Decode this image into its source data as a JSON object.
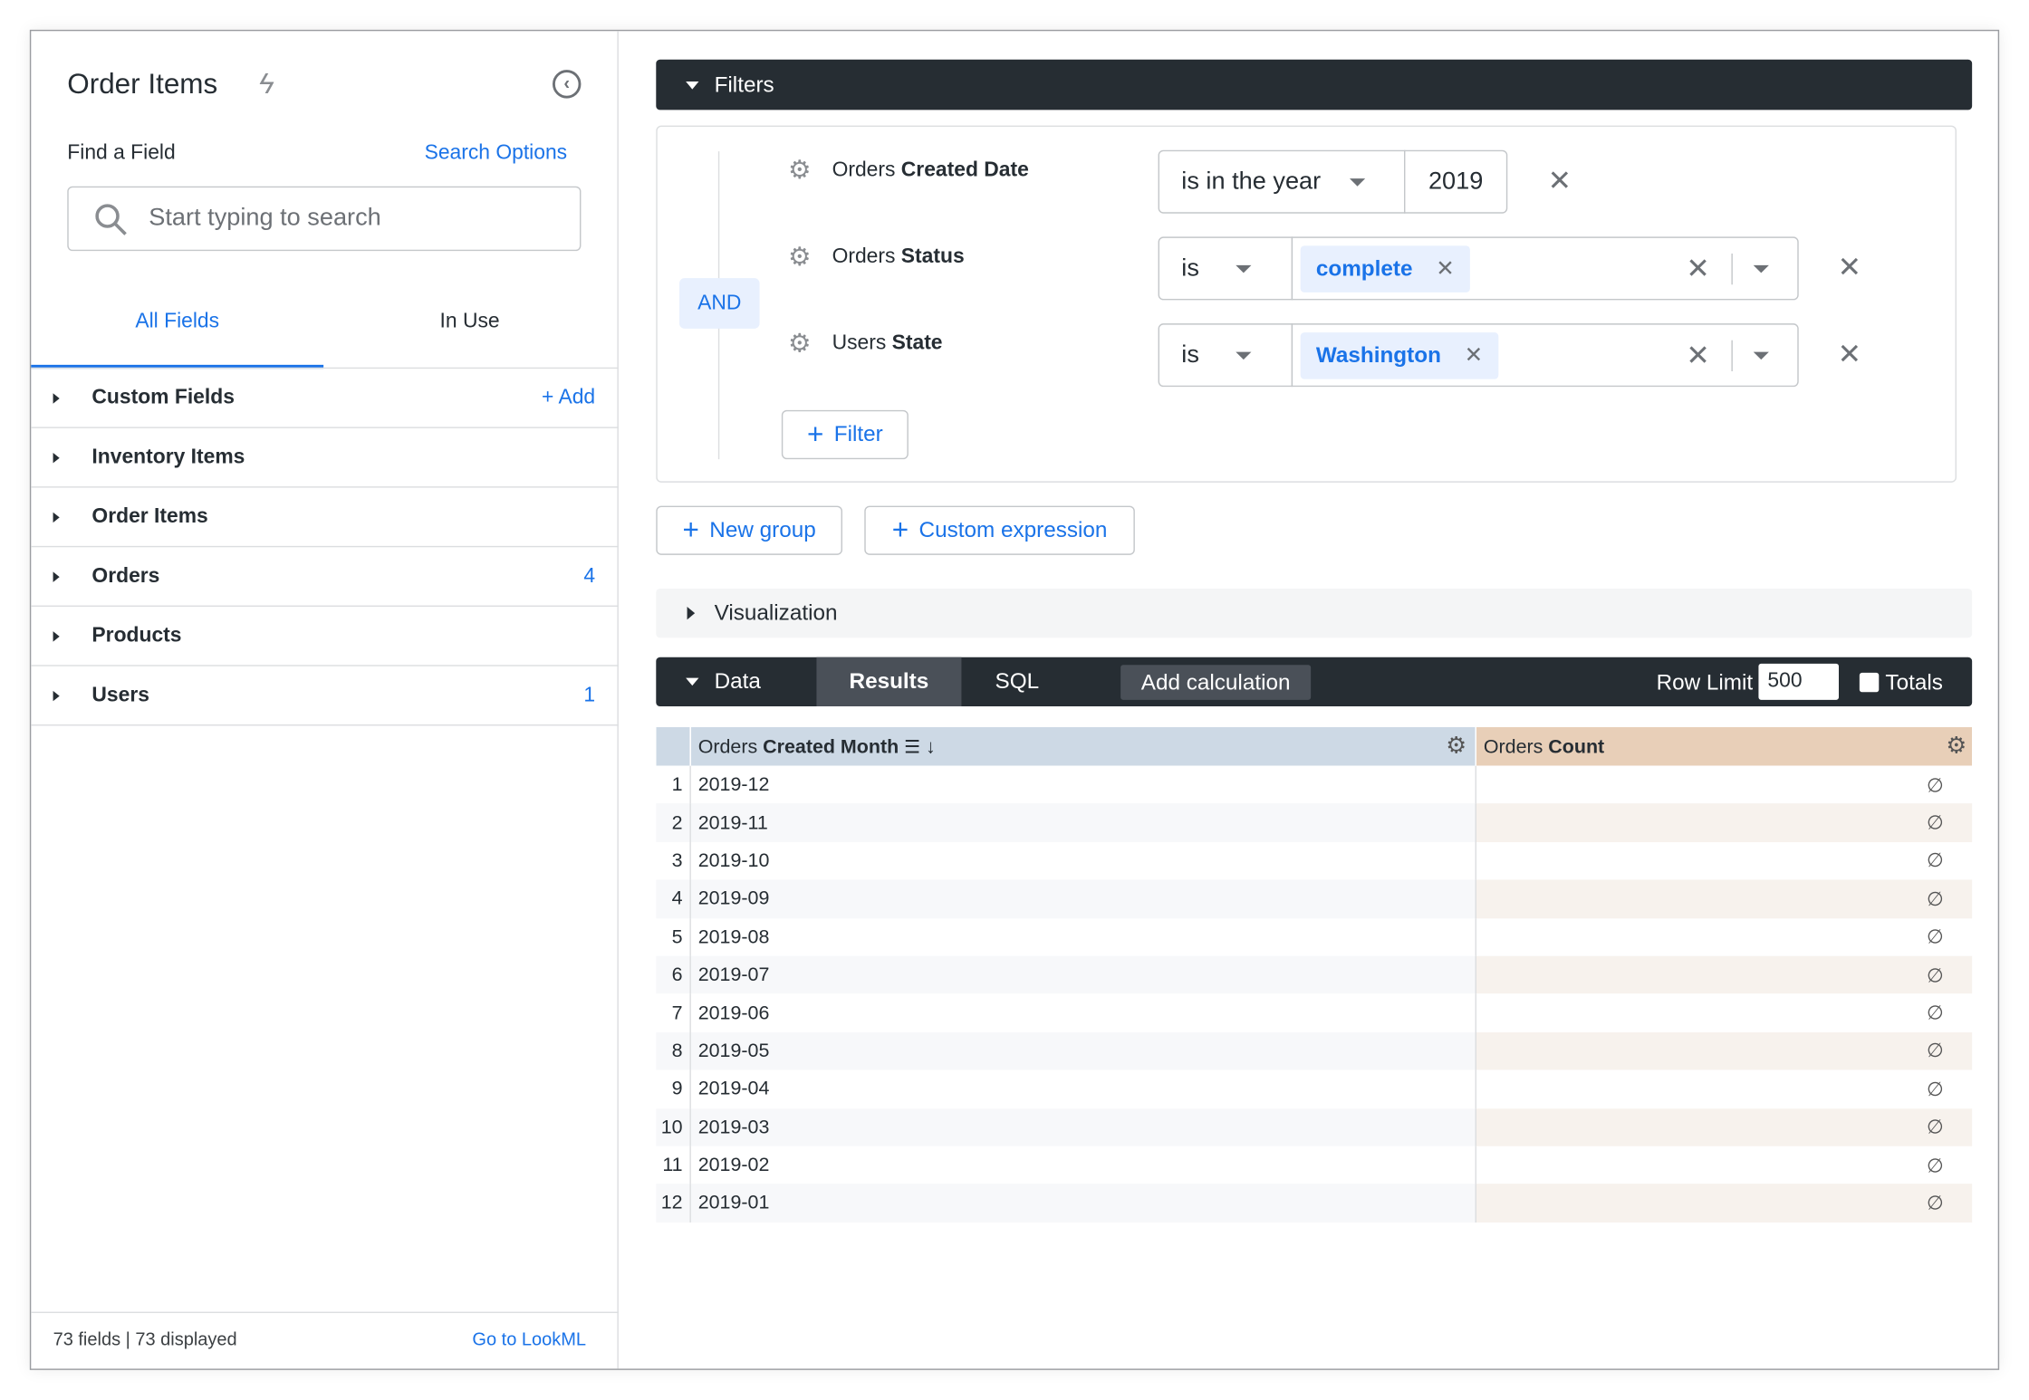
{
  "sidebar": {
    "title": "Order Items",
    "find_label": "Find a Field",
    "search_options": "Search Options",
    "search_placeholder": "Start typing to search",
    "tabs": [
      {
        "label": "All Fields",
        "active": true
      },
      {
        "label": "In Use",
        "active": false
      }
    ],
    "add_label": "Add",
    "items": [
      {
        "label": "Custom Fields",
        "count": ""
      },
      {
        "label": "Inventory Items",
        "count": ""
      },
      {
        "label": "Order Items",
        "count": ""
      },
      {
        "label": "Orders",
        "count": "4"
      },
      {
        "label": "Products",
        "count": ""
      },
      {
        "label": "Users",
        "count": "1"
      }
    ],
    "footer_count": "73 fields | 73 displayed",
    "footer_link": "Go to LookML"
  },
  "filters": {
    "title": "Filters",
    "logic": "AND",
    "rows": [
      {
        "view": "Orders",
        "field": "Created Date",
        "operator": "is in the year",
        "value": "2019"
      },
      {
        "view": "Orders",
        "field": "Status",
        "operator": "is",
        "value": "complete"
      },
      {
        "view": "Users",
        "field": "State",
        "operator": "is",
        "value": "Washington"
      }
    ],
    "add_filter": "Filter",
    "new_group": "New group",
    "custom_expression": "Custom expression"
  },
  "visualization": {
    "title": "Visualization"
  },
  "data_bar": {
    "title": "Data",
    "tabs": [
      "Results",
      "SQL"
    ],
    "active_tab": "Results",
    "add_calculation": "Add calculation",
    "row_limit_label": "Row Limit",
    "row_limit": "500",
    "totals_label": "Totals",
    "totals_checked": false
  },
  "table": {
    "dimension_header": {
      "view": "Orders",
      "field": "Created Month"
    },
    "measure_header": {
      "view": "Orders",
      "field": "Count"
    },
    "colors": {
      "dimension": "#cdd9e5",
      "measure": "#e8cfb8"
    },
    "rows": [
      {
        "index": "1",
        "month": "2019-12",
        "count": "∅"
      },
      {
        "index": "2",
        "month": "2019-11",
        "count": "∅"
      },
      {
        "index": "3",
        "month": "2019-10",
        "count": "∅"
      },
      {
        "index": "4",
        "month": "2019-09",
        "count": "∅"
      },
      {
        "index": "5",
        "month": "2019-08",
        "count": "∅"
      },
      {
        "index": "6",
        "month": "2019-07",
        "count": "∅"
      },
      {
        "index": "7",
        "month": "2019-06",
        "count": "∅"
      },
      {
        "index": "8",
        "month": "2019-05",
        "count": "∅"
      },
      {
        "index": "9",
        "month": "2019-04",
        "count": "∅"
      },
      {
        "index": "10",
        "month": "2019-03",
        "count": "∅"
      },
      {
        "index": "11",
        "month": "2019-02",
        "count": "∅"
      },
      {
        "index": "12",
        "month": "2019-01",
        "count": "∅"
      }
    ]
  }
}
